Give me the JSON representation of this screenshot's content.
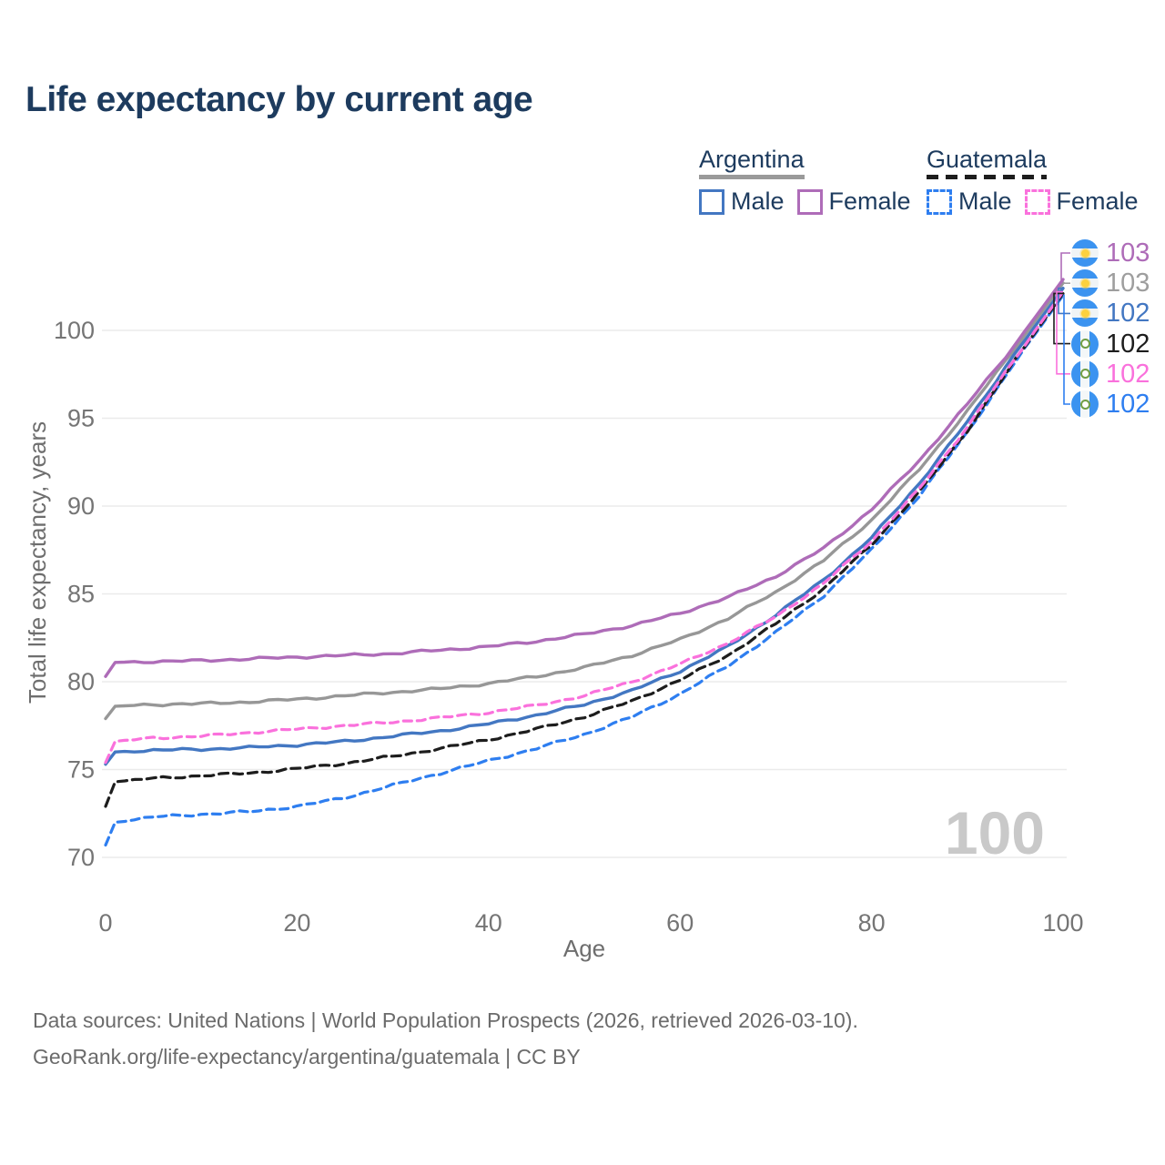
{
  "page": {
    "title": "Life expectancy by current age",
    "footer_line1": "Data sources: United Nations | World Population Prospects (2026, retrieved 2026-03-10).",
    "footer_line2": "GeoRank.org/life-expectancy/argentina/guatemala | CC BY"
  },
  "colors": {
    "title_text": "#1d3b5e",
    "tick_text": "#757575",
    "axis_title_text": "#6e6e6e",
    "gridline": "#ebebeb",
    "watermark": "#c9c9c9",
    "footer_text": "#6b6b6b",
    "argentina_male": "#4377c2",
    "argentina_female": "#ae6cb8",
    "argentina_total": "#979797",
    "guatemala_male": "#2e7ef0",
    "guatemala_female": "#fa71dc",
    "guatemala_total": "#1d1d1d"
  },
  "legend": {
    "groups": [
      {
        "country": "Argentina",
        "underline_style": "solid",
        "underline_color": "#9a9a9a",
        "items": [
          {
            "label": "Male",
            "color": "#4377c2",
            "dashed": false
          },
          {
            "label": "Female",
            "color": "#ae6cb8",
            "dashed": false
          }
        ]
      },
      {
        "country": "Guatemala",
        "underline_style": "dashed",
        "underline_color": "#1d1d1d",
        "items": [
          {
            "label": "Male",
            "color": "#2e7ef0",
            "dashed": true
          },
          {
            "label": "Female",
            "color": "#fa71dc",
            "dashed": true
          }
        ]
      }
    ]
  },
  "chart_data": {
    "type": "line",
    "title": "Life expectancy by current age",
    "xlabel": "Age",
    "ylabel": "Total life expectancy, years",
    "xlim": [
      0,
      100
    ],
    "ylim": [
      70,
      100
    ],
    "x_ticks": [
      0,
      20,
      40,
      60,
      80,
      100
    ],
    "y_ticks": [
      70,
      75,
      80,
      85,
      90,
      95,
      100
    ],
    "grid": true,
    "legend_position": "top-right",
    "watermark": "100",
    "ages": [
      0,
      1,
      5,
      10,
      15,
      20,
      25,
      30,
      35,
      40,
      45,
      50,
      55,
      60,
      65,
      70,
      75,
      80,
      85,
      90,
      95,
      100
    ],
    "series": [
      {
        "id": "argentina-total",
        "name": "Argentina Total",
        "country": "Argentina",
        "sex": "Total",
        "color": "#979797",
        "dashed": false,
        "values": [
          77.9,
          78.6,
          78.7,
          78.75,
          78.85,
          79.0,
          79.2,
          79.4,
          79.6,
          79.9,
          80.3,
          80.8,
          81.5,
          82.4,
          83.6,
          85.1,
          86.9,
          89.2,
          92.1,
          95.4,
          99.0,
          102.7
        ]
      },
      {
        "id": "argentina-female",
        "name": "Argentina Female",
        "country": "Argentina",
        "sex": "Female",
        "color": "#ae6cb8",
        "dashed": false,
        "values": [
          80.3,
          81.1,
          81.15,
          81.2,
          81.3,
          81.4,
          81.5,
          81.6,
          81.8,
          82.0,
          82.3,
          82.7,
          83.2,
          83.9,
          84.8,
          86.0,
          87.6,
          89.8,
          92.6,
          95.8,
          99.2,
          102.9
        ]
      },
      {
        "id": "argentina-male",
        "name": "Argentina Male",
        "country": "Argentina",
        "sex": "Male",
        "color": "#4377c2",
        "dashed": false,
        "values": [
          75.3,
          76.0,
          76.1,
          76.15,
          76.25,
          76.4,
          76.6,
          76.9,
          77.2,
          77.6,
          78.1,
          78.7,
          79.5,
          80.6,
          82.0,
          83.8,
          85.8,
          88.2,
          91.3,
          94.8,
          98.7,
          102.4
        ]
      },
      {
        "id": "guatemala-male",
        "name": "Guatemala Male",
        "country": "Guatemala",
        "sex": "Male",
        "color": "#2e7ef0",
        "dashed": true,
        "values": [
          70.7,
          72.0,
          72.3,
          72.45,
          72.6,
          72.9,
          73.4,
          74.1,
          74.8,
          75.5,
          76.2,
          77.0,
          78.0,
          79.3,
          80.9,
          82.8,
          84.9,
          87.5,
          90.6,
          94.2,
          98.2,
          102.0
        ]
      },
      {
        "id": "guatemala-total",
        "name": "Guatemala Total",
        "country": "Guatemala",
        "sex": "Total",
        "color": "#1d1d1d",
        "dashed": true,
        "values": [
          72.9,
          74.3,
          74.5,
          74.65,
          74.8,
          75.05,
          75.35,
          75.75,
          76.2,
          76.7,
          77.3,
          78.0,
          78.9,
          80.1,
          81.5,
          83.3,
          85.3,
          87.8,
          90.8,
          94.3,
          98.3,
          102.1
        ]
      },
      {
        "id": "guatemala-female",
        "name": "Guatemala Female",
        "country": "Guatemala",
        "sex": "Female",
        "color": "#fa71dc",
        "dashed": true,
        "values": [
          75.4,
          76.6,
          76.8,
          76.9,
          77.1,
          77.3,
          77.5,
          77.7,
          77.95,
          78.25,
          78.65,
          79.2,
          80.0,
          81.0,
          82.2,
          83.7,
          85.6,
          88.0,
          91.0,
          94.5,
          98.4,
          102.2
        ]
      }
    ],
    "end_labels": [
      {
        "series": "argentina-female",
        "country": "Argentina",
        "label": "103",
        "color": "#ae6cb8"
      },
      {
        "series": "argentina-total",
        "country": "Argentina",
        "label": "103",
        "color": "#9e9e9e"
      },
      {
        "series": "argentina-male",
        "country": "Argentina",
        "label": "102",
        "color": "#4377c2"
      },
      {
        "series": "guatemala-total",
        "country": "Guatemala",
        "label": "102",
        "color": "#1d1d1d"
      },
      {
        "series": "guatemala-female",
        "country": "Guatemala",
        "label": "102",
        "color": "#fa71dc"
      },
      {
        "series": "guatemala-male",
        "country": "Guatemala",
        "label": "102",
        "color": "#2e7ef0"
      }
    ]
  }
}
